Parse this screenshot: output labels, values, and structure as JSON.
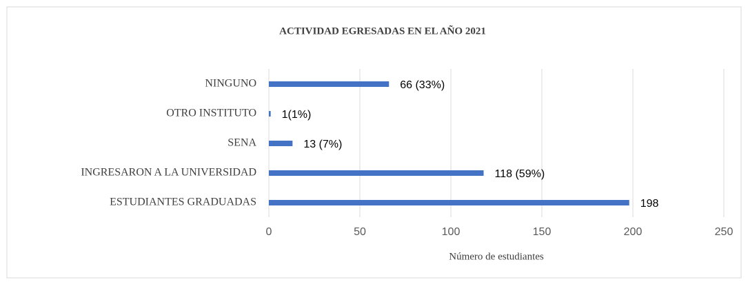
{
  "chart_data": {
    "type": "bar",
    "orientation": "horizontal",
    "title": "ACTIVIDAD EGRESADAS EN EL AÑO 2021",
    "x_label": "Número de estudiantes",
    "categories": [
      "NINGUNO",
      "OTRO INSTITUTO",
      "SENA",
      "INGRESARON A LA UNIVERSIDAD",
      "ESTUDIANTES GRADUADAS"
    ],
    "values": [
      66,
      1,
      13,
      118,
      198
    ],
    "value_labels": [
      "66 (33%)",
      "1(1%)",
      "13 (7%)",
      "118 (59%)",
      "198"
    ],
    "color": "#4472c4",
    "xlim": [
      0,
      250
    ],
    "xticks": [
      0,
      50,
      100,
      150,
      200,
      250
    ],
    "grid": true
  }
}
